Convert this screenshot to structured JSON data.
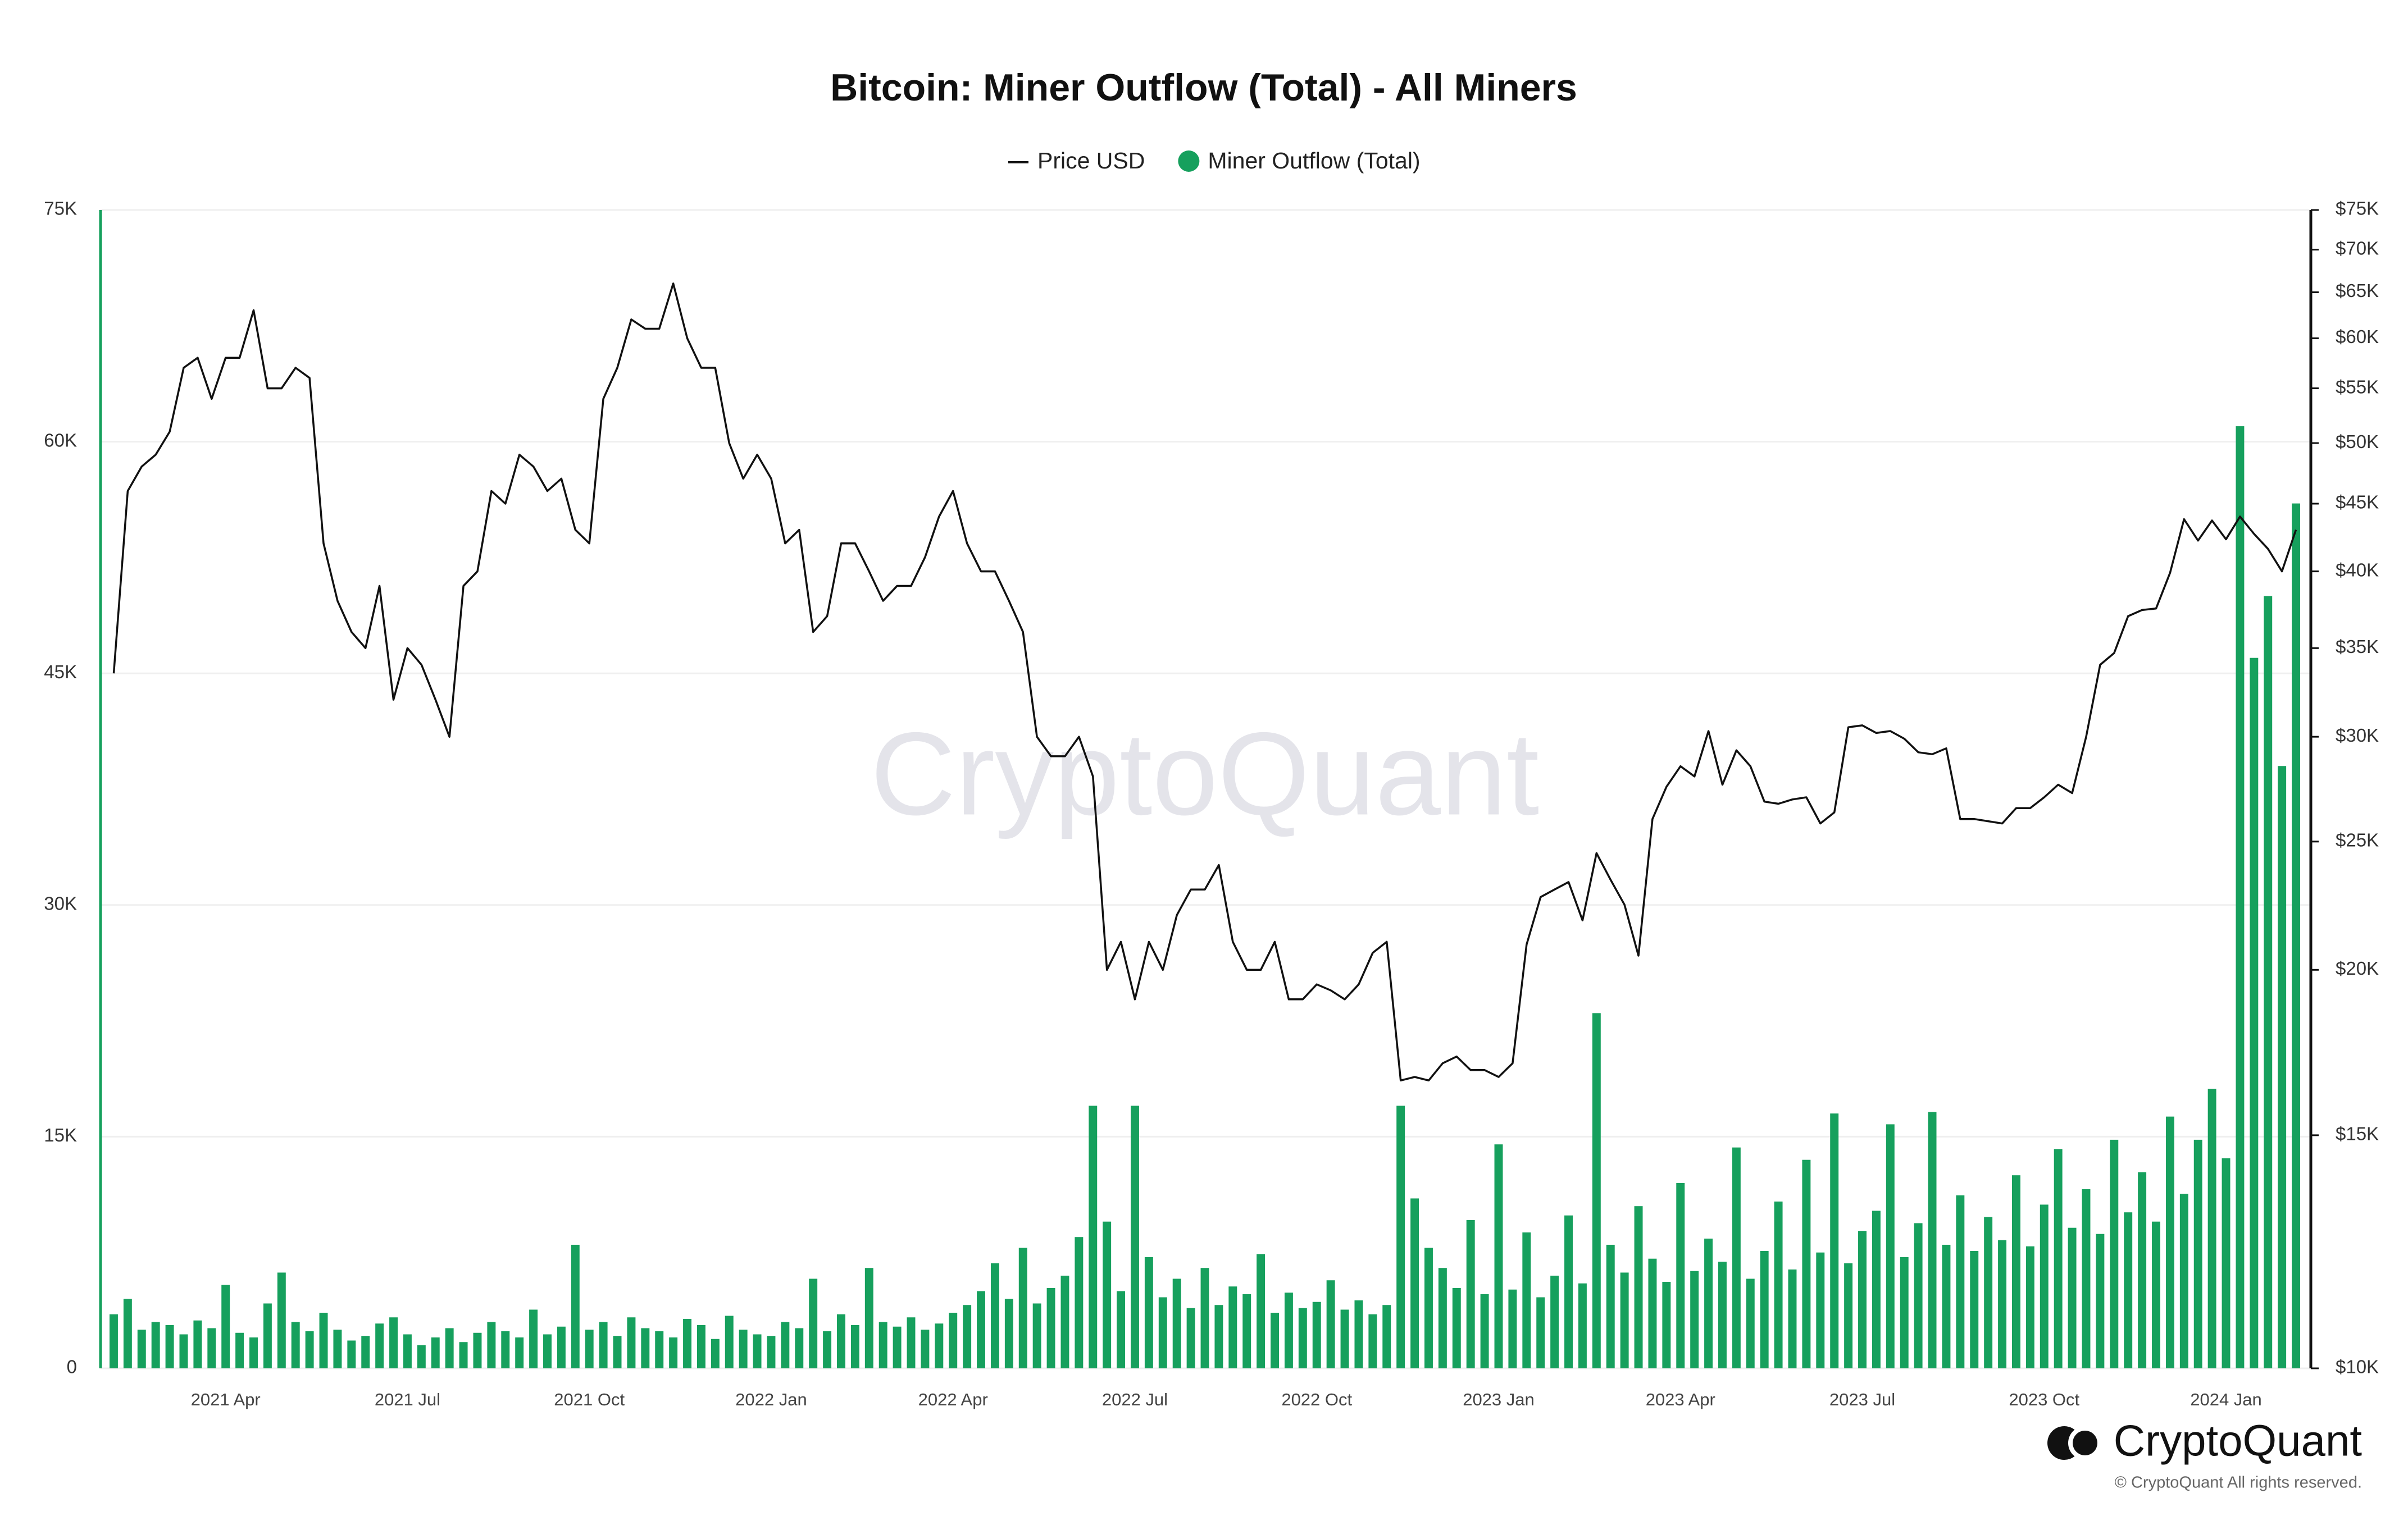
{
  "chart_data": {
    "type": "combo",
    "title": "Bitcoin: Miner Outflow (Total) - All Miners",
    "watermark": "CryptoQuant",
    "brand": "CryptoQuant",
    "copyright": "© CryptoQuant All rights reserved.",
    "categories": [
      null,
      null,
      null,
      null,
      null,
      null,
      null,
      null,
      "2021 Apr",
      null,
      null,
      null,
      null,
      null,
      null,
      null,
      null,
      null,
      null,
      null,
      null,
      "2021 Jul",
      null,
      null,
      null,
      null,
      null,
      null,
      null,
      null,
      null,
      null,
      null,
      null,
      "2021 Oct",
      null,
      null,
      null,
      null,
      null,
      null,
      null,
      null,
      null,
      null,
      null,
      null,
      "2022 Jan",
      null,
      null,
      null,
      null,
      null,
      null,
      null,
      null,
      null,
      null,
      null,
      null,
      "2022 Apr",
      null,
      null,
      null,
      null,
      null,
      null,
      null,
      null,
      null,
      null,
      null,
      null,
      "2022 Jul",
      null,
      null,
      null,
      null,
      null,
      null,
      null,
      null,
      null,
      null,
      null,
      null,
      "2022 Oct",
      null,
      null,
      null,
      null,
      null,
      null,
      null,
      null,
      null,
      null,
      null,
      null,
      "2023 Jan",
      null,
      null,
      null,
      null,
      null,
      null,
      null,
      null,
      null,
      null,
      null,
      null,
      "2023 Apr",
      null,
      null,
      null,
      null,
      null,
      null,
      null,
      null,
      null,
      null,
      null,
      null,
      "2023 Jul",
      null,
      null,
      null,
      null,
      null,
      null,
      null,
      null,
      null,
      null,
      null,
      null,
      "2023 Oct",
      null,
      null,
      null,
      null,
      null,
      null,
      null,
      null,
      null,
      null,
      null,
      null,
      "2024 Jan",
      null,
      null,
      null,
      null,
      null
    ],
    "series": [
      {
        "name": "Price USD",
        "type": "line",
        "axis": "y2",
        "color": "#111111",
        "values": [
          33500,
          46000,
          48000,
          49000,
          51000,
          57000,
          58000,
          54000,
          58000,
          58000,
          63000,
          55000,
          55000,
          57000,
          56000,
          42000,
          38000,
          36000,
          35000,
          39000,
          32000,
          35000,
          34000,
          32000,
          30000,
          39000,
          40000,
          46000,
          45000,
          49000,
          48000,
          46000,
          47000,
          43000,
          42000,
          54000,
          57000,
          62000,
          61000,
          61000,
          66000,
          60000,
          57000,
          57000,
          50000,
          47000,
          49000,
          47000,
          42000,
          43000,
          36000,
          37000,
          42000,
          42000,
          40000,
          38000,
          39000,
          39000,
          41000,
          44000,
          46000,
          42000,
          40000,
          40000,
          38000,
          36000,
          30000,
          29000,
          29000,
          30000,
          28000,
          20000,
          21000,
          19000,
          21000,
          20000,
          22000,
          23000,
          23000,
          24000,
          21000,
          20000,
          20000,
          21000,
          19000,
          19000,
          19500,
          19300,
          19000,
          19500,
          20600,
          21000,
          16500,
          16600,
          16500,
          17000,
          17200,
          16800,
          16800,
          16600,
          17000,
          20900,
          22700,
          23000,
          23300,
          21800,
          24500,
          23400,
          22400,
          20500,
          26000,
          27500,
          28500,
          28000,
          30300,
          27600,
          29300,
          28500,
          26800,
          26700,
          26900,
          27000,
          25800,
          26300,
          30500,
          30600,
          30200,
          30300,
          29900,
          29200,
          29100,
          29400,
          26000,
          26000,
          25900,
          25800,
          26500,
          26500,
          27000,
          27600,
          27200,
          30000,
          34000,
          34700,
          37000,
          37400,
          37500,
          39900,
          43800,
          42200,
          43700,
          42300,
          44000,
          42700,
          41600,
          40000,
          43000
        ]
      },
      {
        "name": "Miner Outflow (Total)",
        "type": "bar",
        "color": "#16a05d",
        "values": [
          3500,
          4500,
          2500,
          3000,
          2800,
          2200,
          3100,
          2600,
          5400,
          2300,
          2000,
          4200,
          6200,
          3000,
          2400,
          3600,
          2500,
          1800,
          2100,
          2900,
          3300,
          2200,
          1500,
          2000,
          2600,
          1700,
          2300,
          3000,
          2400,
          2000,
          3800,
          2200,
          2700,
          8000,
          2500,
          3000,
          2100,
          3300,
          2600,
          2400,
          2000,
          3200,
          2800,
          1900,
          3400,
          2500,
          2200,
          2100,
          3000,
          2600,
          5800,
          2400,
          3500,
          2800,
          6500,
          3000,
          2700,
          3300,
          2500,
          2900,
          3600,
          4100,
          5000,
          6800,
          4500,
          7800,
          4200,
          5200,
          6000,
          8500,
          17000,
          9500,
          5000,
          17000,
          7200,
          4600,
          5800,
          3900,
          6500,
          4100,
          5300,
          4800,
          7400,
          3600,
          4900,
          3900,
          4300,
          5700,
          3800,
          4400,
          3500,
          4100,
          17000,
          11000,
          7800,
          6500,
          5200,
          9600,
          4800,
          14500,
          5100,
          8800,
          4600,
          6000,
          9900,
          5500,
          23000,
          8000,
          6200,
          10500,
          7100,
          5600,
          12000,
          6300,
          8400,
          6900,
          14300,
          5800,
          7600,
          10800,
          6400,
          13500,
          7500,
          16500,
          6800,
          8900,
          10200,
          15800,
          7200,
          9400,
          16600,
          8000,
          11200,
          7600,
          9800,
          8300,
          12500,
          7900,
          10600,
          14200,
          9100,
          11600,
          8700,
          14800,
          10100,
          12700,
          9500,
          16300,
          11300,
          14800,
          18100,
          13600,
          61000,
          46000,
          50000,
          39000,
          56000
        ]
      }
    ],
    "ylim": [
      0,
      75000
    ],
    "yticks": [
      0,
      {
        "value": 15000,
        "label": "15K"
      },
      {
        "value": 30000,
        "label": "30K"
      },
      {
        "value": 45000,
        "label": "45K"
      },
      {
        "value": 60000,
        "label": "60K"
      },
      {
        "value": 75000,
        "label": "75K"
      }
    ],
    "y2lim": [
      10000,
      75000
    ],
    "y2log": true,
    "y2ticks": [
      {
        "value": 10000,
        "label": "$10K"
      },
      {
        "value": 15000,
        "label": "$15K"
      },
      {
        "value": 20000,
        "label": "$20K"
      },
      {
        "value": 25000,
        "label": "$25K"
      },
      {
        "value": 30000,
        "label": "$30K"
      },
      {
        "value": 35000,
        "label": "$35K"
      },
      {
        "value": 40000,
        "label": "$40K"
      },
      {
        "value": 45000,
        "label": "$45K"
      },
      {
        "value": 50000,
        "label": "$50K"
      },
      {
        "value": 55000,
        "label": "$55K"
      },
      {
        "value": 60000,
        "label": "$60K"
      },
      {
        "value": 65000,
        "label": "$65K"
      },
      {
        "value": 70000,
        "label": "$70K"
      },
      {
        "value": 75000,
        "label": "$75K"
      }
    ],
    "grid": true,
    "legend": "top"
  }
}
